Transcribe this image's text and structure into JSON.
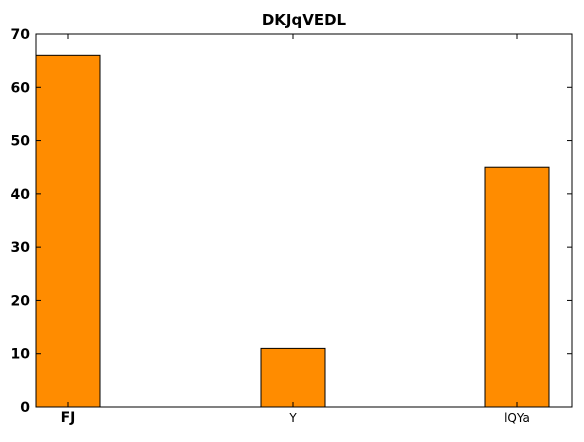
{
  "chart_data": {
    "type": "bar",
    "title": "DKJqVEDL",
    "categories": [
      "FJ",
      "Y",
      "lQYa"
    ],
    "values": [
      66,
      11,
      45
    ],
    "xlabel": "",
    "ylabel": "",
    "ylim": [
      0,
      70
    ],
    "yticks": [
      "0",
      "10",
      "20",
      "30",
      "40",
      "50",
      "60",
      "70"
    ],
    "grid": false,
    "bar_color": "#ff8c00",
    "bar_edge_color": "#000000"
  }
}
